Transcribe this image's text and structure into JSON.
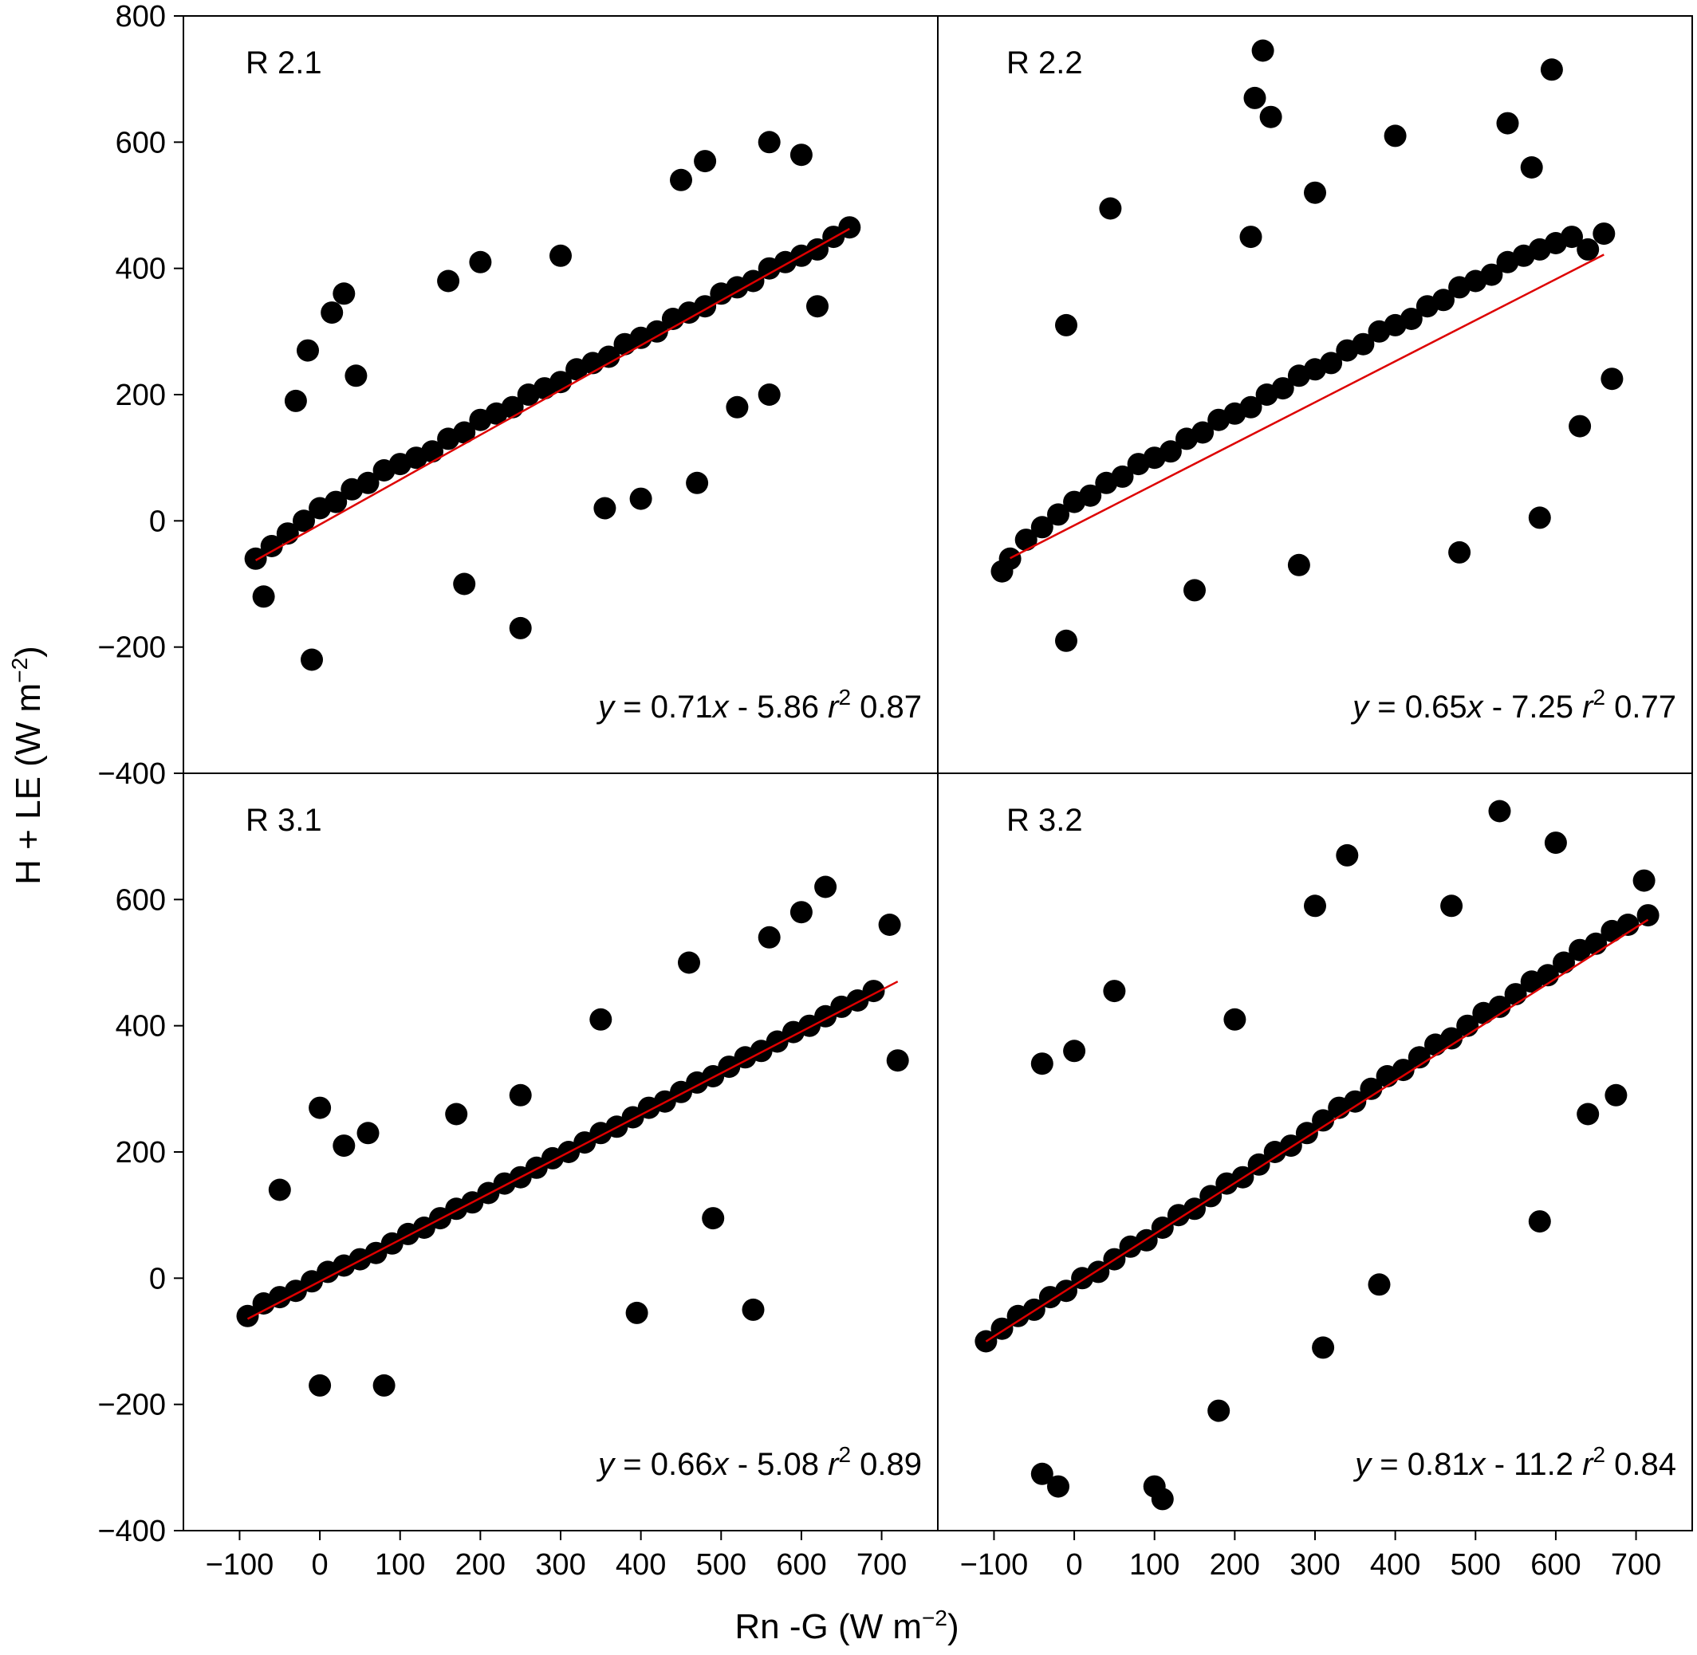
{
  "chart_data": {
    "type": "scatter",
    "xlabel": "Rn -G (W m−2)",
    "ylabel": "H + LE (W m−2)",
    "xlabel_parts": {
      "main": "Rn -G (W m",
      "sup": "−2",
      "close": ")"
    },
    "ylabel_parts": {
      "main": "H + LE (W m",
      "sup": "−2",
      "close": ")"
    },
    "xlim": [
      -170,
      770
    ],
    "ylim": [
      -400,
      800
    ],
    "x_ticks": [
      -100,
      0,
      100,
      200,
      300,
      400,
      500,
      600,
      700
    ],
    "x_tick_labels": [
      "−100",
      "0",
      "100",
      "200",
      "300",
      "400",
      "500",
      "600",
      "700"
    ],
    "y_ticks_top": [
      0,
      200,
      400,
      600,
      800
    ],
    "y_ticks_top_labels": [
      "0",
      "200",
      "400",
      "600",
      "800"
    ],
    "y_ticks_bottom": [
      -400,
      -200,
      0,
      200,
      400,
      600
    ],
    "y_ticks_bottom_labels": [
      "−400",
      "−200",
      "0",
      "200",
      "400",
      "600"
    ],
    "y_ticks_shared": [
      -200,
      0,
      200,
      400,
      600
    ],
    "y_ticks_shared_labels": [
      "−200",
      "0",
      "200",
      "400",
      "600"
    ],
    "grid": false,
    "marker_color": "#000000",
    "fit_line_color": "#dd0000",
    "panels": [
      {
        "id": "R 2.1",
        "label": "R 2.1",
        "equation": {
          "y": "y",
          "eq1": " = 0.71",
          "x": "x",
          "eq2": " - 5.86  ",
          "r": "r",
          "sup": "2",
          "eq3": " 0.87"
        },
        "fit": {
          "slope": 0.71,
          "intercept": -5.86,
          "r2": 0.87,
          "x_range": [
            -80,
            660
          ]
        },
        "points": [
          [
            -80,
            -60
          ],
          [
            -60,
            -40
          ],
          [
            -40,
            -20
          ],
          [
            -20,
            0
          ],
          [
            0,
            20
          ],
          [
            20,
            30
          ],
          [
            40,
            50
          ],
          [
            60,
            60
          ],
          [
            80,
            80
          ],
          [
            100,
            90
          ],
          [
            120,
            100
          ],
          [
            140,
            110
          ],
          [
            160,
            130
          ],
          [
            180,
            140
          ],
          [
            200,
            160
          ],
          [
            220,
            170
          ],
          [
            240,
            180
          ],
          [
            260,
            200
          ],
          [
            280,
            210
          ],
          [
            300,
            220
          ],
          [
            320,
            240
          ],
          [
            340,
            250
          ],
          [
            360,
            260
          ],
          [
            380,
            280
          ],
          [
            400,
            290
          ],
          [
            420,
            300
          ],
          [
            440,
            320
          ],
          [
            460,
            330
          ],
          [
            480,
            340
          ],
          [
            500,
            360
          ],
          [
            520,
            370
          ],
          [
            540,
            380
          ],
          [
            560,
            400
          ],
          [
            580,
            410
          ],
          [
            600,
            420
          ],
          [
            620,
            430
          ],
          [
            640,
            450
          ],
          [
            660,
            465
          ],
          [
            30,
            360
          ],
          [
            15,
            330
          ],
          [
            -15,
            270
          ],
          [
            45,
            230
          ],
          [
            -30,
            190
          ],
          [
            355,
            20
          ],
          [
            250,
            -170
          ],
          [
            -10,
            -220
          ],
          [
            -70,
            -120
          ],
          [
            180,
            -100
          ],
          [
            400,
            35
          ],
          [
            470,
            60
          ],
          [
            520,
            180
          ],
          [
            450,
            540
          ],
          [
            480,
            570
          ],
          [
            560,
            600
          ],
          [
            600,
            580
          ],
          [
            560,
            200
          ],
          [
            620,
            340
          ],
          [
            300,
            420
          ],
          [
            200,
            410
          ],
          [
            160,
            380
          ]
        ]
      },
      {
        "id": "R 2.2",
        "label": "R 2.2",
        "equation": {
          "y": "y",
          "eq1": " = 0.65",
          "x": "x",
          "eq2": " - 7.25  ",
          "r": "r",
          "sup": "2",
          "eq3": " 0.77"
        },
        "fit": {
          "slope": 0.65,
          "intercept": -7.25,
          "r2": 0.77,
          "x_range": [
            -80,
            660
          ]
        },
        "points": [
          [
            -80,
            -60
          ],
          [
            -60,
            -30
          ],
          [
            -40,
            -10
          ],
          [
            -20,
            10
          ],
          [
            0,
            30
          ],
          [
            20,
            40
          ],
          [
            40,
            60
          ],
          [
            60,
            70
          ],
          [
            80,
            90
          ],
          [
            100,
            100
          ],
          [
            120,
            110
          ],
          [
            140,
            130
          ],
          [
            160,
            140
          ],
          [
            180,
            160
          ],
          [
            200,
            170
          ],
          [
            220,
            180
          ],
          [
            240,
            200
          ],
          [
            260,
            210
          ],
          [
            280,
            230
          ],
          [
            300,
            240
          ],
          [
            320,
            250
          ],
          [
            340,
            270
          ],
          [
            360,
            280
          ],
          [
            380,
            300
          ],
          [
            400,
            310
          ],
          [
            420,
            320
          ],
          [
            440,
            340
          ],
          [
            460,
            350
          ],
          [
            480,
            370
          ],
          [
            500,
            380
          ],
          [
            520,
            390
          ],
          [
            540,
            410
          ],
          [
            560,
            420
          ],
          [
            580,
            430
          ],
          [
            600,
            440
          ],
          [
            620,
            450
          ],
          [
            640,
            430
          ],
          [
            660,
            455
          ],
          [
            235,
            745
          ],
          [
            595,
            715
          ],
          [
            225,
            670
          ],
          [
            245,
            640
          ],
          [
            45,
            495
          ],
          [
            -10,
            310
          ],
          [
            -90,
            -80
          ],
          [
            -10,
            -190
          ],
          [
            480,
            -50
          ],
          [
            580,
            5
          ],
          [
            630,
            150
          ],
          [
            670,
            225
          ],
          [
            400,
            610
          ],
          [
            540,
            630
          ],
          [
            570,
            560
          ],
          [
            300,
            520
          ],
          [
            220,
            450
          ],
          [
            150,
            -110
          ],
          [
            280,
            -70
          ]
        ]
      },
      {
        "id": "R 3.1",
        "label": "R 3.1",
        "equation": {
          "y": "y",
          "eq1": " = 0.66",
          "x": "x",
          "eq2": " - 5.08 ",
          "r": "r",
          "sup": "2",
          "eq3": " 0.89"
        },
        "fit": {
          "slope": 0.66,
          "intercept": -5.08,
          "r2": 0.89,
          "x_range": [
            -90,
            720
          ]
        },
        "points": [
          [
            -90,
            -60
          ],
          [
            -70,
            -40
          ],
          [
            -50,
            -30
          ],
          [
            -30,
            -20
          ],
          [
            -10,
            -5
          ],
          [
            10,
            10
          ],
          [
            30,
            20
          ],
          [
            50,
            30
          ],
          [
            70,
            40
          ],
          [
            90,
            55
          ],
          [
            110,
            70
          ],
          [
            130,
            80
          ],
          [
            150,
            95
          ],
          [
            170,
            110
          ],
          [
            190,
            120
          ],
          [
            210,
            135
          ],
          [
            230,
            150
          ],
          [
            250,
            160
          ],
          [
            270,
            175
          ],
          [
            290,
            190
          ],
          [
            310,
            200
          ],
          [
            330,
            215
          ],
          [
            350,
            230
          ],
          [
            370,
            240
          ],
          [
            390,
            255
          ],
          [
            410,
            270
          ],
          [
            430,
            280
          ],
          [
            450,
            295
          ],
          [
            470,
            310
          ],
          [
            490,
            320
          ],
          [
            510,
            335
          ],
          [
            530,
            350
          ],
          [
            550,
            360
          ],
          [
            570,
            375
          ],
          [
            590,
            390
          ],
          [
            610,
            400
          ],
          [
            630,
            415
          ],
          [
            650,
            430
          ],
          [
            670,
            440
          ],
          [
            690,
            455
          ],
          [
            720,
            345
          ],
          [
            0,
            270
          ],
          [
            -50,
            140
          ],
          [
            60,
            230
          ],
          [
            30,
            210
          ],
          [
            80,
            -170
          ],
          [
            0,
            -170
          ],
          [
            395,
            -55
          ],
          [
            540,
            -50
          ],
          [
            490,
            95
          ],
          [
            630,
            620
          ],
          [
            600,
            580
          ],
          [
            710,
            560
          ],
          [
            560,
            540
          ],
          [
            460,
            500
          ],
          [
            350,
            410
          ],
          [
            250,
            290
          ],
          [
            170,
            260
          ]
        ]
      },
      {
        "id": "R 3.2",
        "label": "R 3.2",
        "equation": {
          "y": "y",
          "eq1": " = 0.81",
          "x": "x",
          "eq2": " - 11.2 ",
          "r": "r",
          "sup": "2",
          "eq3": " 0.84"
        },
        "fit": {
          "slope": 0.81,
          "intercept": -11.2,
          "r2": 0.84,
          "x_range": [
            -110,
            715
          ]
        },
        "points": [
          [
            -110,
            -100
          ],
          [
            -90,
            -80
          ],
          [
            -70,
            -60
          ],
          [
            -50,
            -50
          ],
          [
            -30,
            -30
          ],
          [
            -10,
            -20
          ],
          [
            10,
            0
          ],
          [
            30,
            10
          ],
          [
            50,
            30
          ],
          [
            70,
            50
          ],
          [
            90,
            60
          ],
          [
            110,
            80
          ],
          [
            130,
            100
          ],
          [
            150,
            110
          ],
          [
            170,
            130
          ],
          [
            190,
            150
          ],
          [
            210,
            160
          ],
          [
            230,
            180
          ],
          [
            250,
            200
          ],
          [
            270,
            210
          ],
          [
            290,
            230
          ],
          [
            310,
            250
          ],
          [
            330,
            270
          ],
          [
            350,
            280
          ],
          [
            370,
            300
          ],
          [
            390,
            320
          ],
          [
            410,
            330
          ],
          [
            430,
            350
          ],
          [
            450,
            370
          ],
          [
            470,
            380
          ],
          [
            490,
            400
          ],
          [
            510,
            420
          ],
          [
            530,
            430
          ],
          [
            550,
            450
          ],
          [
            570,
            470
          ],
          [
            590,
            480
          ],
          [
            610,
            500
          ],
          [
            630,
            520
          ],
          [
            650,
            530
          ],
          [
            670,
            550
          ],
          [
            690,
            560
          ],
          [
            715,
            575
          ],
          [
            530,
            740
          ],
          [
            340,
            670
          ],
          [
            50,
            455
          ],
          [
            -40,
            340
          ],
          [
            -40,
            -310
          ],
          [
            -20,
            -330
          ],
          [
            110,
            -350
          ],
          [
            100,
            -330
          ],
          [
            180,
            -210
          ],
          [
            380,
            -10
          ],
          [
            310,
            -110
          ],
          [
            580,
            90
          ],
          [
            640,
            260
          ],
          [
            675,
            290
          ],
          [
            710,
            630
          ],
          [
            600,
            690
          ],
          [
            470,
            590
          ],
          [
            300,
            590
          ],
          [
            200,
            410
          ],
          [
            0,
            360
          ]
        ]
      }
    ]
  }
}
